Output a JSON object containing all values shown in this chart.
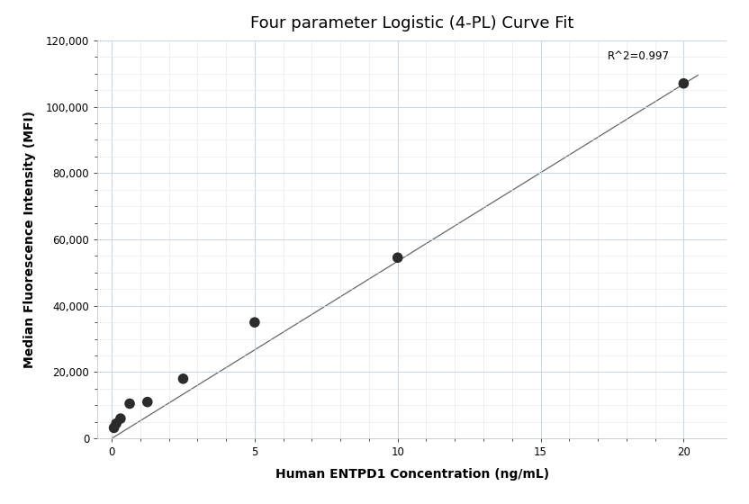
{
  "title": "Four parameter Logistic (4-PL) Curve Fit",
  "xlabel": "Human ENTPD1 Concentration (ng/mL)",
  "ylabel": "Median Fluorescence Intensity (MFI)",
  "scatter_x": [
    0.08,
    0.16,
    0.31,
    0.63,
    1.25,
    2.5,
    5.0,
    10.0,
    20.0
  ],
  "scatter_y": [
    3200,
    4500,
    6000,
    10500,
    11000,
    18000,
    35000,
    54500,
    107000
  ],
  "line_x": [
    0.0,
    20.5
  ],
  "line_y": [
    0.0,
    109500
  ],
  "r_squared_text": "R^2=0.997",
  "r_squared_x": 19.5,
  "r_squared_y": 113500,
  "xlim": [
    -0.5,
    21.5
  ],
  "ylim": [
    0,
    120000
  ],
  "yticks": [
    0,
    20000,
    40000,
    60000,
    80000,
    100000,
    120000
  ],
  "xticks": [
    0,
    5,
    10,
    15,
    20
  ],
  "scatter_color": "#2b2b2b",
  "line_color": "#666666",
  "grid_major_color": "#c8d4e8",
  "grid_minor_color": "#dde6f0",
  "background_color": "#ffffff",
  "title_fontsize": 13,
  "label_fontsize": 10,
  "tick_fontsize": 8.5,
  "annotation_fontsize": 8.5,
  "scatter_size": 70,
  "line_width": 0.9
}
